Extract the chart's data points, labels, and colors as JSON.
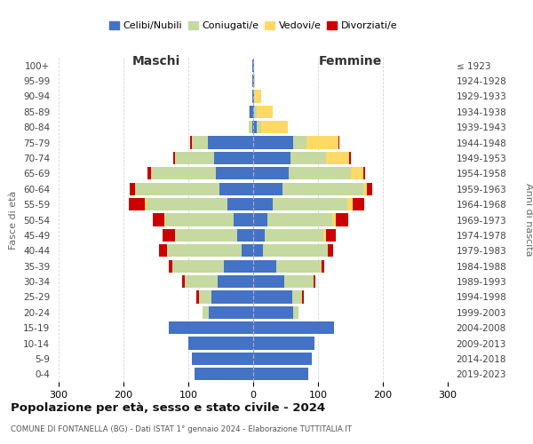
{
  "age_groups": [
    "100+",
    "95-99",
    "90-94",
    "85-89",
    "80-84",
    "75-79",
    "70-74",
    "65-69",
    "60-64",
    "55-59",
    "50-54",
    "45-49",
    "40-44",
    "35-39",
    "30-34",
    "25-29",
    "20-24",
    "15-19",
    "10-14",
    "5-9",
    "0-4"
  ],
  "birth_years": [
    "≤ 1923",
    "1924-1928",
    "1929-1933",
    "1934-1938",
    "1939-1943",
    "1944-1948",
    "1949-1953",
    "1954-1958",
    "1959-1963",
    "1964-1968",
    "1969-1973",
    "1974-1978",
    "1979-1983",
    "1984-1988",
    "1989-1993",
    "1994-1998",
    "1999-2003",
    "2004-2008",
    "2009-2013",
    "2014-2018",
    "2019-2023"
  ],
  "colors": {
    "celibi_nubili": "#4472c4",
    "coniugati": "#c5d9a0",
    "vedovi": "#ffd966",
    "divorziati": "#cc0000"
  },
  "title": "Popolazione per età, sesso e stato civile - 2024",
  "subtitle": "COMUNE DI FONTANELLA (BG) - Dati ISTAT 1° gennaio 2024 - Elaborazione TUTTITALIA.IT",
  "xlabel_left": "Maschi",
  "xlabel_right": "Femmine",
  "ylabel_left": "Fasce di età",
  "ylabel_right": "Anni di nascita",
  "xlim": 300,
  "bg_color": "#ffffff",
  "grid_color": "#cccccc",
  "male_celibi": [
    90,
    95,
    100,
    130,
    68,
    65,
    55,
    45,
    18,
    25,
    30,
    40,
    52,
    58,
    60,
    70,
    2,
    5,
    2,
    1,
    1
  ],
  "male_coniugati": [
    0,
    0,
    0,
    0,
    10,
    18,
    50,
    80,
    115,
    95,
    105,
    125,
    130,
    100,
    60,
    25,
    5,
    2,
    0,
    0,
    0
  ],
  "male_vedovi": [
    0,
    0,
    0,
    0,
    0,
    0,
    0,
    0,
    0,
    0,
    2,
    2,
    0,
    0,
    0,
    0,
    0,
    0,
    0,
    0,
    0
  ],
  "male_divorziati": [
    0,
    0,
    0,
    0,
    0,
    5,
    5,
    5,
    12,
    20,
    18,
    25,
    8,
    5,
    3,
    2,
    0,
    0,
    0,
    0,
    0
  ],
  "female_nubili": [
    85,
    90,
    95,
    125,
    62,
    60,
    48,
    35,
    15,
    18,
    22,
    30,
    45,
    55,
    58,
    62,
    5,
    2,
    1,
    1,
    1
  ],
  "female_coniugate": [
    0,
    0,
    0,
    0,
    8,
    15,
    45,
    70,
    100,
    90,
    100,
    115,
    125,
    95,
    55,
    20,
    8,
    3,
    0,
    0,
    0
  ],
  "female_vedove": [
    0,
    0,
    0,
    0,
    0,
    0,
    0,
    0,
    0,
    5,
    5,
    8,
    5,
    20,
    35,
    50,
    40,
    25,
    12,
    2,
    0
  ],
  "female_divorziate": [
    0,
    0,
    0,
    0,
    0,
    3,
    3,
    5,
    8,
    15,
    20,
    18,
    8,
    3,
    2,
    1,
    0,
    0,
    0,
    0,
    0
  ]
}
